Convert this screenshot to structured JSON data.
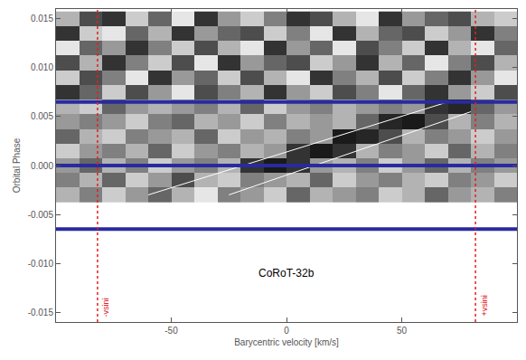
{
  "chart_data": {
    "type": "heatmap",
    "x_label": "Barycentric velocity [km/s]",
    "y_label": "Orbital Phase",
    "xlim": [
      -100,
      100
    ],
    "xticks": [
      -50,
      0,
      50
    ],
    "ylim": [
      -0.016,
      0.016
    ],
    "yticks": [
      {
        "value": -0.015,
        "label": "-0.015"
      },
      {
        "value": -0.01,
        "label": "-0.010"
      },
      {
        "value": -0.005,
        "label": "-0.005"
      },
      {
        "value": 0,
        "label": "0.000"
      },
      {
        "value": 0.005,
        "label": "0.005"
      },
      {
        "value": 0.01,
        "label": "0.010"
      },
      {
        "value": 0.015,
        "label": "0.015"
      }
    ],
    "zlim": [
      0,
      1
    ],
    "x": [
      -95,
      -85,
      -75,
      -65,
      -55,
      -45,
      -35,
      -25,
      -15,
      -5,
      5,
      15,
      25,
      35,
      45,
      55,
      65,
      75,
      85,
      95
    ],
    "y": [
      -0.003,
      -0.0015,
      0,
      0.0015,
      0.003,
      0.0045,
      0.006,
      0.0075,
      0.009,
      0.0105,
      0.012,
      0.0135,
      0.015
    ],
    "cells": [
      [
        0.7,
        0.5,
        0.8,
        0.6,
        0.4,
        0.7,
        0.9,
        0.5,
        0.6,
        0.8,
        0.4,
        0.7,
        0.6,
        0.5,
        0.8,
        0.7,
        0.4,
        0.6,
        0.7,
        0.5
      ],
      [
        0.5,
        0.7,
        0.4,
        0.8,
        0.6,
        0.3,
        0.7,
        0.8,
        0.5,
        0.6,
        0.7,
        0.4,
        0.8,
        0.6,
        0.5,
        0.7,
        0.8,
        0.5,
        0.6,
        0.8
      ],
      [
        0.6,
        0.4,
        0.7,
        0.5,
        0.8,
        0.6,
        0.5,
        0.7,
        0.2,
        0.1,
        0.2,
        0.6,
        0.7,
        0.5,
        0.8,
        0.6,
        0.4,
        0.7,
        0.5,
        0.6
      ],
      [
        0.8,
        0.6,
        0.5,
        0.7,
        0.4,
        0.8,
        0.6,
        0.5,
        0.7,
        0.6,
        0.2,
        0.1,
        0.2,
        0.7,
        0.5,
        0.6,
        0.8,
        0.4,
        0.7,
        0.5
      ],
      [
        0.4,
        0.7,
        0.8,
        0.5,
        0.6,
        0.7,
        0.4,
        0.8,
        0.6,
        0.7,
        0.5,
        0.6,
        0.1,
        0.15,
        0.3,
        0.7,
        0.5,
        0.6,
        0.8,
        0.6
      ],
      [
        0.6,
        0.5,
        0.6,
        0.8,
        0.5,
        0.4,
        0.7,
        0.6,
        0.8,
        0.5,
        0.7,
        0.6,
        0.7,
        0.4,
        0.15,
        0.1,
        0.3,
        0.7,
        0.5,
        0.7
      ],
      [
        0.7,
        0.8,
        0.4,
        0.6,
        0.7,
        0.6,
        0.5,
        0.7,
        0.4,
        0.8,
        0.6,
        0.5,
        0.7,
        0.6,
        0.5,
        0.6,
        0.2,
        0.15,
        0.4,
        0.6
      ],
      [
        0.2,
        0.4,
        0.8,
        0.3,
        0.6,
        0.9,
        0.3,
        0.5,
        0.7,
        0.2,
        0.6,
        0.8,
        0.3,
        0.5,
        0.9,
        0.4,
        0.2,
        0.6,
        0.8,
        0.3
      ],
      [
        0.8,
        0.3,
        0.5,
        0.9,
        0.2,
        0.6,
        0.4,
        0.8,
        0.3,
        0.7,
        0.9,
        0.2,
        0.5,
        0.7,
        0.3,
        0.8,
        0.5,
        0.2,
        0.6,
        0.9
      ],
      [
        0.3,
        0.7,
        0.2,
        0.5,
        0.8,
        0.3,
        0.9,
        0.2,
        0.6,
        0.4,
        0.3,
        0.8,
        0.6,
        0.2,
        0.7,
        0.4,
        0.9,
        0.5,
        0.3,
        0.7
      ],
      [
        0.9,
        0.4,
        0.6,
        0.2,
        0.5,
        0.8,
        0.3,
        0.7,
        0.9,
        0.2,
        0.6,
        0.4,
        0.9,
        0.3,
        0.5,
        0.8,
        0.2,
        0.7,
        0.9,
        0.4
      ],
      [
        0.2,
        0.8,
        0.9,
        0.4,
        0.7,
        0.2,
        0.6,
        0.4,
        0.3,
        0.8,
        0.5,
        0.9,
        0.2,
        0.7,
        0.4,
        0.3,
        0.8,
        0.6,
        0.2,
        0.5
      ],
      [
        0.7,
        0.3,
        0.2,
        0.8,
        0.4,
        0.9,
        0.2,
        0.6,
        0.8,
        0.5,
        0.2,
        0.3,
        0.7,
        0.9,
        0.2,
        0.6,
        0.4,
        0.3,
        0.7,
        0.8
      ]
    ],
    "lines": [
      {
        "color": "#ffffff",
        "x": [
          -60,
          70
        ],
        "y": [
          -0.003,
          0.0065
        ]
      },
      {
        "color": "#ffffff",
        "x": [
          -25,
          80
        ],
        "y": [
          -0.003,
          0.0055
        ]
      }
    ],
    "hlines": {
      "color": "#2a2aa0",
      "y": [
        -0.0065,
        0,
        0.0065
      ]
    },
    "vlines": {
      "color": "#e02020",
      "line_style": "dot",
      "items": [
        {
          "x": -82,
          "label": "-vsini"
        },
        {
          "x": 82,
          "label": "+vsini"
        }
      ]
    },
    "annotations": [
      {
        "text": "CoRoT-32b",
        "x": 0,
        "y": -0.011
      }
    ]
  }
}
